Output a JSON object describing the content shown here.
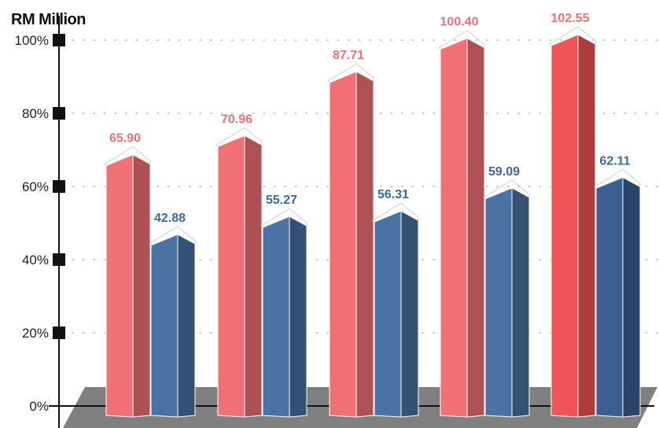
{
  "chart_data": {
    "type": "bar",
    "title": "RM Million",
    "ylim": [
      0,
      100
    ],
    "grid": "dotted horizontal",
    "y_ticks": [
      "0%",
      "20%",
      "40%",
      "60%",
      "80%",
      "100%"
    ],
    "series": [
      {
        "values": [
          "65.90",
          "70.96",
          "87.71",
          "100.40",
          "102.55"
        ],
        "heights_pct": [
          68.7,
          73.9,
          91.4,
          100.5,
          101.5
        ],
        "color": "#f07075",
        "last_color": "#f05358",
        "label_color": "#f07075"
      },
      {
        "values": [
          "42.88",
          "55.27",
          "56.31",
          "59.09",
          "62.11"
        ],
        "heights_pct": [
          46.9,
          51.8,
          53.3,
          59.6,
          62.5
        ],
        "color": "#4a72a3",
        "last_color": "#3a5f90",
        "label_color": "#3d689f"
      }
    ],
    "floor_color": "#808081"
  }
}
